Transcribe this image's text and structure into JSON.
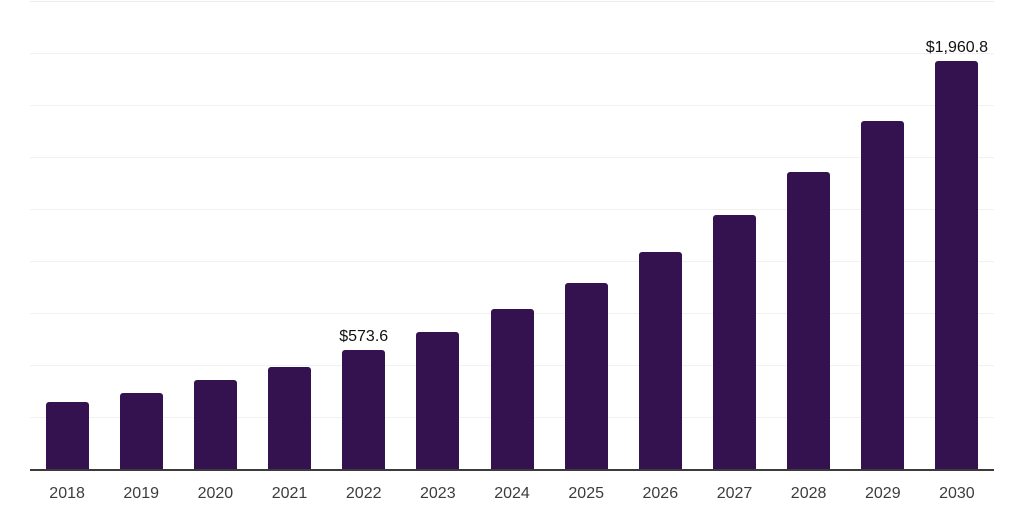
{
  "chart_data": {
    "type": "bar",
    "title": "",
    "xlabel": "",
    "ylabel": "",
    "categories": [
      "2018",
      "2019",
      "2020",
      "2021",
      "2022",
      "2023",
      "2024",
      "2025",
      "2026",
      "2027",
      "2028",
      "2029",
      "2030"
    ],
    "values": [
      320,
      367,
      426,
      491,
      573.6,
      661,
      771,
      896,
      1045,
      1223,
      1430,
      1675,
      1960.8
    ],
    "data_labels": [
      {
        "category": "2022",
        "text": "$573.6"
      },
      {
        "category": "2030",
        "text": "$1,960.8"
      }
    ],
    "ylim": [
      0,
      2250
    ],
    "grid_step": 250,
    "grid": true,
    "legend_position": "none",
    "colors": {
      "bar": "#341250",
      "axis_line": "#3b3b3b",
      "gridline": "#f1f1f1",
      "gridline_top": "#ebebeb",
      "tick_label": "#3c3c3c",
      "data_label": "#111111",
      "background": "#ffffff"
    }
  }
}
